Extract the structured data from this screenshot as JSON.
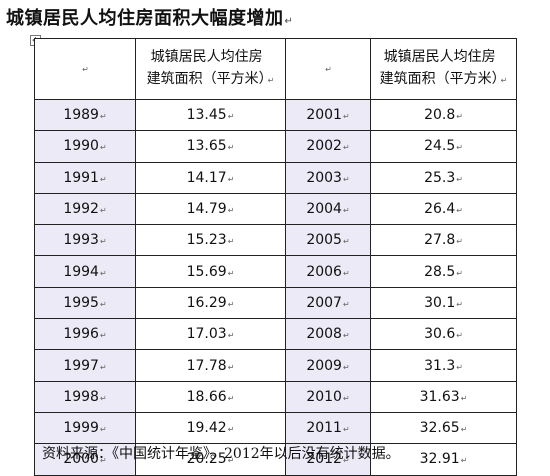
{
  "title": "城镇居民人均住房面积大幅度增加",
  "anchor_icon": "table-move-handle-icon",
  "header": {
    "left_year": "",
    "left_area": "城镇居民人均住房建筑面积（平方米）",
    "right_year": "",
    "right_area": "城镇居民人均住房建筑面积（平方米）"
  },
  "rows": [
    {
      "y1": "1989",
      "v1": "13.45",
      "y2": "2001",
      "v2": "20.8"
    },
    {
      "y1": "1990",
      "v1": "13.65",
      "y2": "2002",
      "v2": "24.5"
    },
    {
      "y1": "1991",
      "v1": "14.17",
      "y2": "2003",
      "v2": "25.3"
    },
    {
      "y1": "1992",
      "v1": "14.79",
      "y2": "2004",
      "v2": "26.4"
    },
    {
      "y1": "1993",
      "v1": "15.23",
      "y2": "2005",
      "v2": "27.8"
    },
    {
      "y1": "1994",
      "v1": "15.69",
      "y2": "2006",
      "v2": "28.5"
    },
    {
      "y1": "1995",
      "v1": "16.29",
      "y2": "2007",
      "v2": "30.1"
    },
    {
      "y1": "1996",
      "v1": "17.03",
      "y2": "2008",
      "v2": "30.6"
    },
    {
      "y1": "1997",
      "v1": "17.78",
      "y2": "2009",
      "v2": "31.3"
    },
    {
      "y1": "1998",
      "v1": "18.66",
      "y2": "2010",
      "v2": "31.63"
    },
    {
      "y1": "1999",
      "v1": "19.42",
      "y2": "2011",
      "v2": "32.65"
    },
    {
      "y1": "2000",
      "v1": "20.25",
      "y2": "2012",
      "v2": "32.91"
    }
  ],
  "source": "资料来源：《中国统计年鉴》。2012年以后没有统计数据。",
  "colors": {
    "year_cell_bg": "#ebeaf6",
    "border": "#222222"
  }
}
